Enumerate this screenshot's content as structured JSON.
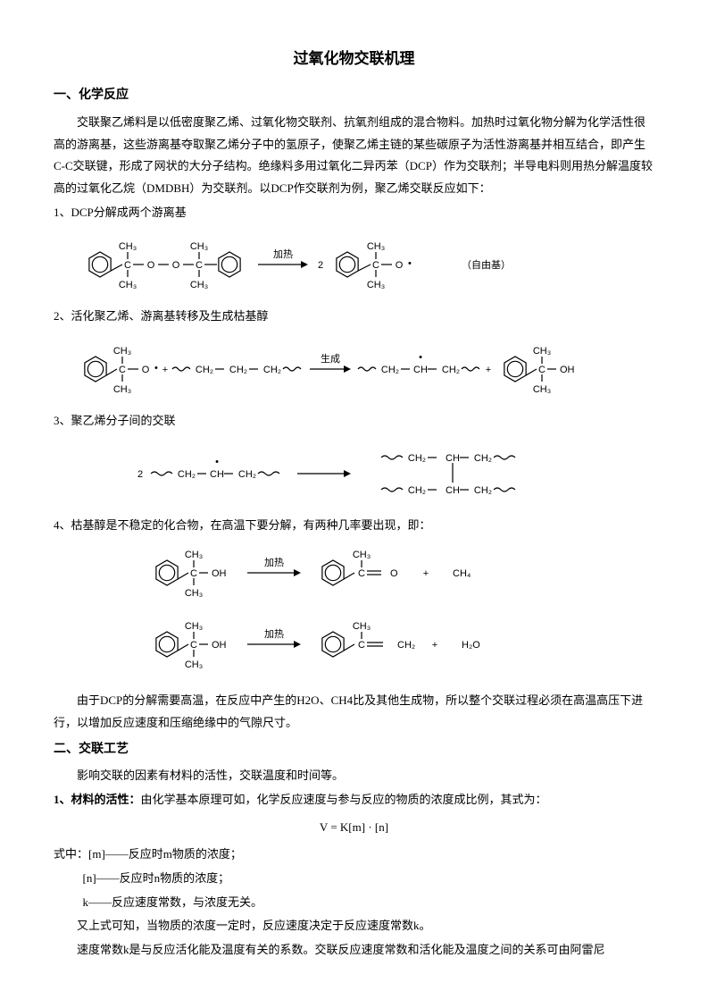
{
  "title": "过氧化物交联机理",
  "sec1": {
    "heading": "一、化学反应",
    "p1": "交联聚乙烯料是以低密度聚乙烯、过氧化物交联剂、抗氧剂组成的混合物料。加热时过氧化物分解为化学活性很高的游离基，这些游离基夺取聚乙烯分子中的氢原子，使聚乙烯主链的某些碳原子为活性游离基并相互结合，即产生C-C交联键，形成了网状的大分子结构。绝缘料多用过氧化二异丙苯（DCP）作为交联剂；半导电料则用热分解温度较高的过氧化乙烷（DMDBH）为交联剂。以DCP作交联剂为例，聚乙烯交联反应如下：",
    "i1": "1、DCP分解成两个游离基",
    "i2": "2、活化聚乙烯、游离基转移及生成枯基醇",
    "i3": "3、聚乙烯分子间的交联",
    "i4": "4、枯基醇是不稳定的化合物，在高温下要分解，有两种几率要出现，即：",
    "p2": "由于DCP的分解需要高温，在反应中产生的H2O、CH4比及其他生成物，所以整个交联过程必须在高温高压下进行，以增加反应速度和压缩绝缘中的气隙尺寸。"
  },
  "sec2": {
    "heading": "二、交联工艺",
    "p1": "影响交联的因素有材料的活性，交联温度和时间等。",
    "b1_label": "1、材料的活性：",
    "b1_text": "由化学基本原理可如，化学反应速度与参与反应的物质的浓度成比例，其式为：",
    "formula": "V = K[m] · [n]",
    "f1": "式中：[m]——反应时m物质的浓度；",
    "f2": "[n]——反应时n物质的浓度；",
    "f3": "k——反应速度常数，与浓度无关。",
    "p2": "又上式可知，当物质的浓度一定时，反应速度决定于反应速度常数k。",
    "p3": "速度常数k是与反应活化能及温度有关的系数。交联反应速度常数和活化能及温度之间的关系可由阿雷尼"
  },
  "chem": {
    "heat": "加热",
    "gen": "生成",
    "radical": "（自由基）",
    "CH3": "CH₃",
    "CH2": "CH₂",
    "CH": "CH",
    "CH4": "CH₄",
    "H2O": "H₂O",
    "OH": "OH",
    "O": "O",
    "C": "C",
    "two": "2",
    "plus": "+",
    "dot": "•"
  },
  "colors": {
    "stroke": "#000000",
    "text": "#000000",
    "bg": "#ffffff"
  },
  "style": {
    "body_fontsize": 13,
    "title_fontsize": 17,
    "line_height": 1.9,
    "stroke_width": 1.2,
    "chem_font": "Arial, sans-serif",
    "chem_fontsize": 11
  }
}
